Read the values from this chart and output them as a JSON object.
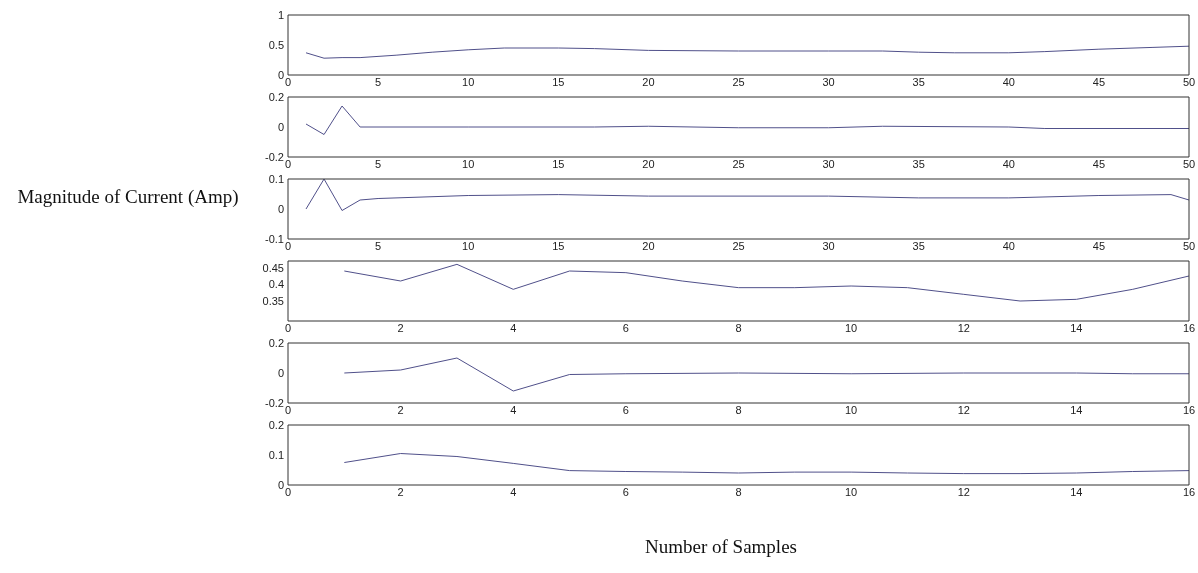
{
  "chart_data": [
    {
      "type": "line",
      "color": "#50508a",
      "x": [
        1,
        2,
        3,
        4,
        6,
        8,
        10,
        12,
        15,
        17,
        20,
        25,
        30,
        33,
        35,
        37,
        40,
        42,
        45,
        48,
        50
      ],
      "values": [
        0.37,
        0.28,
        0.29,
        0.29,
        0.33,
        0.38,
        0.42,
        0.45,
        0.45,
        0.44,
        0.41,
        0.4,
        0.4,
        0.4,
        0.38,
        0.37,
        0.37,
        0.39,
        0.43,
        0.46,
        0.48
      ],
      "xlim": [
        0,
        50
      ],
      "xticks": [
        0,
        5,
        10,
        15,
        20,
        25,
        30,
        35,
        40,
        45,
        50
      ],
      "ylim": [
        0,
        1
      ],
      "yticks": [
        0,
        0.5,
        1
      ],
      "grid": false
    },
    {
      "type": "line",
      "color": "#50508a",
      "x": [
        1,
        2,
        3,
        4,
        10,
        17,
        20,
        25,
        30,
        33,
        40,
        42,
        49,
        50
      ],
      "values": [
        0.02,
        -0.05,
        0.14,
        0,
        0,
        0,
        0.005,
        -0.005,
        -0.005,
        0.005,
        0,
        -0.01,
        -0.01,
        -0.01
      ],
      "xlim": [
        0,
        50
      ],
      "xticks": [
        0,
        5,
        10,
        15,
        20,
        25,
        30,
        35,
        40,
        45,
        50
      ],
      "ylim": [
        -0.2,
        0.2
      ],
      "yticks": [
        -0.2,
        0,
        0.2
      ],
      "grid": false
    },
    {
      "type": "line",
      "color": "#50508a",
      "ylabel": "Magnitude of Current (Amp)",
      "x": [
        1,
        2,
        3,
        4,
        5,
        10,
        15,
        20,
        30,
        35,
        40,
        45,
        49,
        50
      ],
      "values": [
        0,
        0.1,
        -0.005,
        0.03,
        0.035,
        0.045,
        0.048,
        0.043,
        0.043,
        0.037,
        0.037,
        0.045,
        0.048,
        0.03
      ],
      "xlim": [
        0,
        50
      ],
      "xticks": [
        0,
        5,
        10,
        15,
        20,
        25,
        30,
        35,
        40,
        45,
        50
      ],
      "ylim": [
        -0.1,
        0.1
      ],
      "yticks": [
        -0.1,
        0,
        0.1
      ],
      "grid": false
    },
    {
      "type": "line",
      "color": "#50508a",
      "x": [
        1,
        2,
        3,
        4,
        5,
        6,
        7,
        8,
        9,
        10,
        11,
        12,
        13,
        14,
        15,
        16
      ],
      "values": [
        0.44,
        0.41,
        0.46,
        0.385,
        0.44,
        0.435,
        0.41,
        0.39,
        0.39,
        0.395,
        0.39,
        0.37,
        0.35,
        0.355,
        0.385,
        0.425
      ],
      "xlim": [
        0,
        16
      ],
      "xticks": [
        0,
        2,
        4,
        6,
        8,
        10,
        12,
        14,
        16
      ],
      "ylim": [
        0.29,
        0.47
      ],
      "yticks": [
        0.35,
        0.4,
        0.45
      ],
      "grid": false
    },
    {
      "type": "line",
      "color": "#50508a",
      "x": [
        1,
        2,
        3,
        4,
        5,
        6,
        8,
        10,
        12,
        14,
        15,
        16
      ],
      "values": [
        0,
        0.02,
        0.1,
        -0.12,
        -0.01,
        -0.005,
        0,
        -0.005,
        0,
        0,
        -0.005,
        -0.005
      ],
      "xlim": [
        0,
        16
      ],
      "xticks": [
        0,
        2,
        4,
        6,
        8,
        10,
        12,
        14,
        16
      ],
      "ylim": [
        -0.2,
        0.2
      ],
      "yticks": [
        -0.2,
        0,
        0.2
      ],
      "grid": false
    },
    {
      "type": "line",
      "color": "#50508a",
      "xlabel": "Number of Samples",
      "x": [
        1,
        2,
        3,
        4,
        5,
        6,
        7,
        8,
        9,
        10,
        11,
        12,
        13,
        14,
        15,
        16
      ],
      "values": [
        0.075,
        0.105,
        0.095,
        0.072,
        0.048,
        0.045,
        0.043,
        0.04,
        0.043,
        0.043,
        0.04,
        0.038,
        0.038,
        0.04,
        0.045,
        0.048
      ],
      "xlim": [
        0,
        16
      ],
      "xticks": [
        0,
        2,
        4,
        6,
        8,
        10,
        12,
        14,
        16
      ],
      "ylim": [
        0,
        0.2
      ],
      "yticks": [
        0,
        0.1,
        0.2
      ],
      "grid": false
    }
  ]
}
